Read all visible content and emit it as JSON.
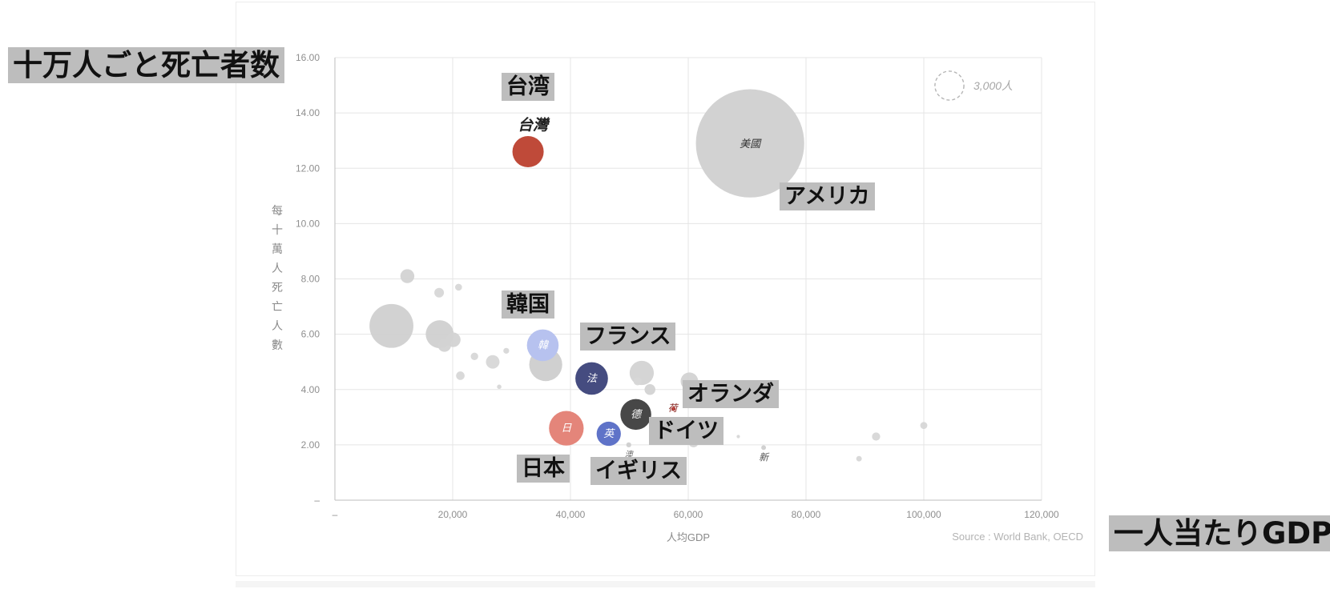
{
  "page": {
    "source": "Source : World Bank, OECD"
  },
  "annotations": {
    "y_title_jp": "十万人ごと死亡者数",
    "x_title_jp": "一人当たりGDP",
    "taiwan_jp": "台湾",
    "usa_jp": "アメリカ",
    "korea_jp": "韓国",
    "france_jp": "フランス",
    "netherlands_jp": "オランダ",
    "germany_jp": "ドイツ",
    "japan_jp": "日本",
    "uk_jp": "イギリス"
  },
  "colors": {
    "grid": "#e5e5e5",
    "axis": "#c9c9c9",
    "bubble_gray": "#cfcfcf",
    "taiwan": "#bf4a39",
    "korea": "#b7c2ef",
    "france": "#454c80",
    "germany": "#474747",
    "japan": "#e4857a",
    "uk": "#5f73c8",
    "netherlands": "#d44c46",
    "annotation_bg": "#bdbdbd"
  },
  "chart_data": {
    "type": "scatter",
    "title": "",
    "xlabel": "人均GDP",
    "ylabel": "每十萬人死亡人數",
    "xlim": [
      0,
      120000
    ],
    "ylim": [
      0,
      16
    ],
    "x_ticks": [
      {
        "value": 0,
        "label": "–"
      },
      {
        "value": 20000,
        "label": "20,000"
      },
      {
        "value": 40000,
        "label": "40,000"
      },
      {
        "value": 60000,
        "label": "60,000"
      },
      {
        "value": 80000,
        "label": "80,000"
      },
      {
        "value": 100000,
        "label": "100,000"
      },
      {
        "value": 120000,
        "label": "120,000"
      }
    ],
    "y_ticks": [
      {
        "value": 0,
        "label": "–"
      },
      {
        "value": 2,
        "label": "2.00"
      },
      {
        "value": 4,
        "label": "4.00"
      },
      {
        "value": 6,
        "label": "6.00"
      },
      {
        "value": 8,
        "label": "8.00"
      },
      {
        "value": 10,
        "label": "10.00"
      },
      {
        "value": 12,
        "label": "12.00"
      },
      {
        "value": 14,
        "label": "14.00"
      },
      {
        "value": 16,
        "label": "16.00"
      }
    ],
    "grid": true,
    "legend": {
      "placement": "top-right",
      "label": "3,000人",
      "value": 3000
    },
    "points": [
      {
        "name": "",
        "x": 70500,
        "y": 12.9,
        "size": 42000,
        "label": "美國",
        "color": "#d0d0d0"
      },
      {
        "name": "",
        "x": 32800,
        "y": 12.6,
        "size": 3500,
        "label": "台灣",
        "color": "#bf4a39"
      },
      {
        "name": "",
        "x": 35300,
        "y": 5.6,
        "size": 3600,
        "label": "韓",
        "color": "#b7c2ef"
      },
      {
        "name": "",
        "x": 43600,
        "y": 4.4,
        "size": 3800,
        "label": "法",
        "color": "#454c80"
      },
      {
        "name": "",
        "x": 51100,
        "y": 3.1,
        "size": 3400,
        "label": "德",
        "color": "#474747"
      },
      {
        "name": "",
        "x": 39300,
        "y": 2.6,
        "size": 4300,
        "label": "日",
        "color": "#e4857a"
      },
      {
        "name": "",
        "x": 46500,
        "y": 2.4,
        "size": 2100,
        "label": "英",
        "color": "#5f73c8"
      },
      {
        "name": "",
        "x": 57500,
        "y": 3.3,
        "size": 60,
        "label": "荷",
        "color": "#d44c46"
      },
      {
        "name": "",
        "x": 72800,
        "y": 1.9,
        "size": 80,
        "label": "新",
        "color": "#cfcfcf"
      },
      {
        "name": "",
        "x": 49900,
        "y": 2.0,
        "size": 90,
        "label": "澳",
        "color": "#cfcfcf"
      },
      {
        "name": "",
        "x": 9600,
        "y": 6.3,
        "size": 6900,
        "label": "",
        "color": "#d0d0d0"
      },
      {
        "name": "",
        "x": 17800,
        "y": 6.0,
        "size": 2800,
        "label": "",
        "color": "#d0d0d0"
      },
      {
        "name": "",
        "x": 35800,
        "y": 4.9,
        "size": 3900,
        "label": "",
        "color": "#cdcdcd"
      },
      {
        "name": "",
        "x": 52100,
        "y": 4.6,
        "size": 2100,
        "label": "",
        "color": "#d3d3d3"
      },
      {
        "name": "",
        "x": 60200,
        "y": 4.3,
        "size": 1100,
        "label": "",
        "color": "#d3d3d3"
      },
      {
        "name": "",
        "x": 12300,
        "y": 8.1,
        "size": 700,
        "label": "",
        "color": "#d3d3d3"
      },
      {
        "name": "",
        "x": 17700,
        "y": 7.5,
        "size": 330,
        "label": "",
        "color": "#d7d7d7"
      },
      {
        "name": "",
        "x": 21000,
        "y": 7.7,
        "size": 170,
        "label": "",
        "color": "#d7d7d7"
      },
      {
        "name": "",
        "x": 18600,
        "y": 5.6,
        "size": 620,
        "label": "",
        "color": "#d3d3d3"
      },
      {
        "name": "",
        "x": 20100,
        "y": 5.8,
        "size": 760,
        "label": "",
        "color": "#d3d3d3"
      },
      {
        "name": "",
        "x": 23700,
        "y": 5.2,
        "size": 200,
        "label": "",
        "color": "#d7d7d7"
      },
      {
        "name": "",
        "x": 21300,
        "y": 4.5,
        "size": 260,
        "label": "",
        "color": "#d7d7d7"
      },
      {
        "name": "",
        "x": 26800,
        "y": 5.0,
        "size": 660,
        "label": "",
        "color": "#d7d7d7"
      },
      {
        "name": "",
        "x": 29100,
        "y": 5.4,
        "size": 120,
        "label": "",
        "color": "#d7d7d7"
      },
      {
        "name": "",
        "x": 27900,
        "y": 4.1,
        "size": 70,
        "label": "",
        "color": "#d7d7d7"
      },
      {
        "name": "",
        "x": 51400,
        "y": 4.3,
        "size": 240,
        "label": "",
        "color": "#d7d7d7"
      },
      {
        "name": "",
        "x": 53500,
        "y": 4.0,
        "size": 420,
        "label": "",
        "color": "#d3d3d3"
      },
      {
        "name": "",
        "x": 60900,
        "y": 2.1,
        "size": 380,
        "label": "",
        "color": "#d3d3d3"
      },
      {
        "name": "",
        "x": 91900,
        "y": 2.3,
        "size": 240,
        "label": "",
        "color": "#d7d7d7"
      },
      {
        "name": "",
        "x": 100000,
        "y": 2.7,
        "size": 180,
        "label": "",
        "color": "#d7d7d7"
      },
      {
        "name": "",
        "x": 89000,
        "y": 1.5,
        "size": 110,
        "label": "",
        "color": "#d7d7d7"
      },
      {
        "name": "",
        "x": 68500,
        "y": 2.3,
        "size": 40,
        "label": "",
        "color": "#d7d7d7"
      }
    ]
  }
}
